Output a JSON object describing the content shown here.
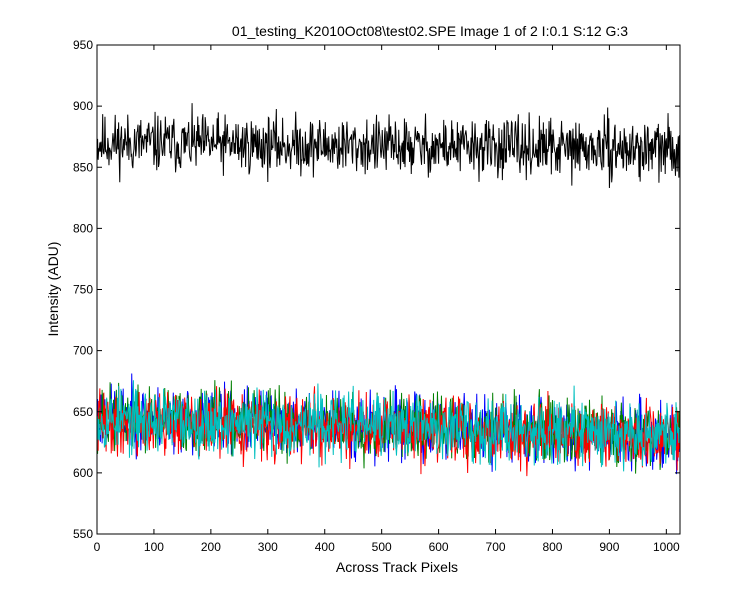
{
  "chart_data": {
    "type": "line",
    "title": "01_testing_K2010Oct08\\test02.SPE  Image 1 of 2  I:0.1  S:12  G:3",
    "xlabel": "Across Track Pixels",
    "ylabel": "Intensity (ADU)",
    "xlim": [
      0,
      1024
    ],
    "ylim": [
      550,
      950
    ],
    "xticks": [
      0,
      100,
      200,
      300,
      400,
      500,
      600,
      700,
      800,
      900,
      1000
    ],
    "yticks": [
      550,
      600,
      650,
      700,
      750,
      800,
      850,
      900,
      950
    ],
    "grid": false,
    "legend": "none",
    "series": [
      {
        "color": "#000000",
        "mean_start": 870,
        "mean_end": 864,
        "noise_amplitude": 18,
        "seed": 11,
        "n_points": 1024
      },
      {
        "color": "#0000ff",
        "mean_start": 646,
        "mean_end": 630,
        "noise_amplitude": 20,
        "seed": 23,
        "n_points": 1024
      },
      {
        "color": "#007f00",
        "mean_start": 645,
        "mean_end": 632,
        "noise_amplitude": 20,
        "seed": 37,
        "n_points": 1024
      },
      {
        "color": "#ff0000",
        "mean_start": 642,
        "mean_end": 628,
        "noise_amplitude": 20,
        "seed": 41,
        "n_points": 1024
      },
      {
        "color": "#00bfbf",
        "mean_start": 644,
        "mean_end": 633,
        "noise_amplitude": 20,
        "seed": 53,
        "n_points": 1024
      }
    ]
  }
}
